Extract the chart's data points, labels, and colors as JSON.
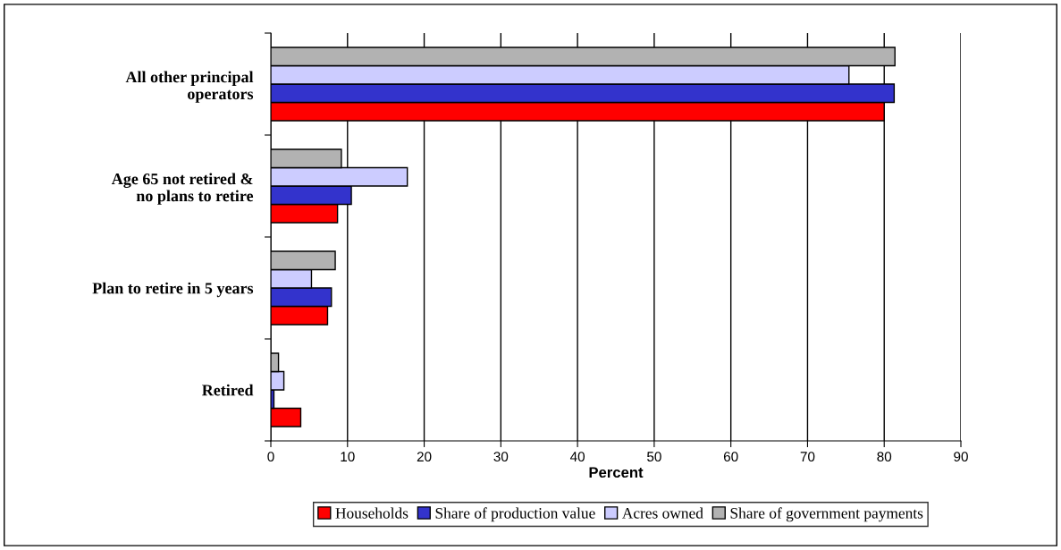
{
  "chart_data": {
    "type": "bar",
    "orientation": "horizontal",
    "xlabel": "Percent",
    "categories": [
      "All other principal operators",
      "Age 65 not retired & no plans to retire",
      "Plan to retire in 5 years",
      "Retired"
    ],
    "series": [
      {
        "name": "Households",
        "color": "#ff0000",
        "values": [
          80.0,
          8.7,
          7.4,
          3.9
        ]
      },
      {
        "name": "Share of production value",
        "color": "#3333cc",
        "values": [
          81.3,
          10.5,
          7.9,
          0.4
        ]
      },
      {
        "name": "Acres owned",
        "color": "#ccccff",
        "values": [
          75.4,
          17.8,
          5.3,
          1.7
        ]
      },
      {
        "name": "Share of government payments",
        "color": "#b2b2b2",
        "values": [
          81.4,
          9.2,
          8.4,
          1.0
        ]
      }
    ],
    "xlim": [
      0,
      90
    ],
    "xticks": [
      0,
      10,
      20,
      30,
      40,
      50,
      60,
      70,
      80,
      90
    ],
    "grid": "x",
    "legend": "bottom"
  }
}
